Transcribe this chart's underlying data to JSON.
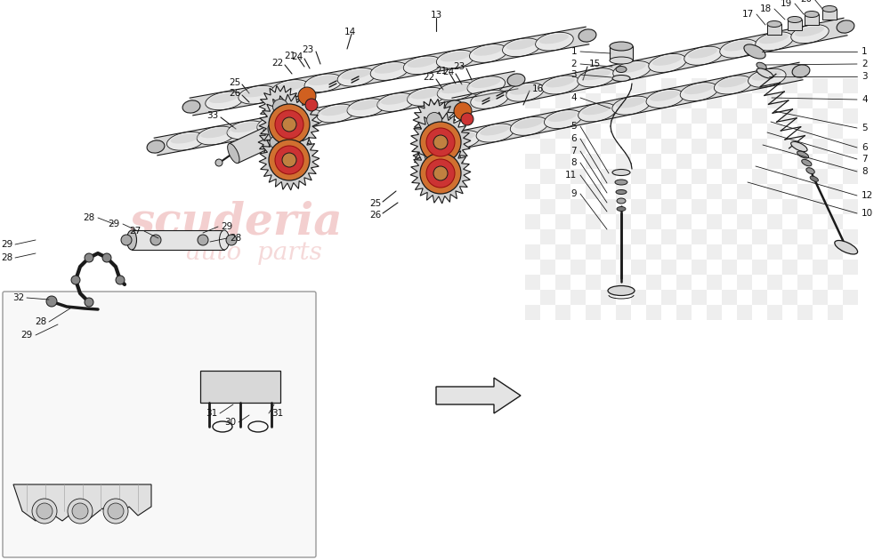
{
  "bg_color": "#ffffff",
  "line_color": "#1a1a1a",
  "label_color": "#111111",
  "watermark_pink": "#e8a0a0",
  "checker_gray": "#c8c8c8",
  "part_fill": "#e8e8e8",
  "part_fill_dark": "#c0c0c0",
  "part_fill_mid": "#d8d8d8",
  "orange_fill": "#d07030",
  "red_fill": "#cc3333",
  "inset_bg": "#f8f8f8",
  "fig_width": 10.0,
  "fig_height": 6.3,
  "dpi": 100
}
